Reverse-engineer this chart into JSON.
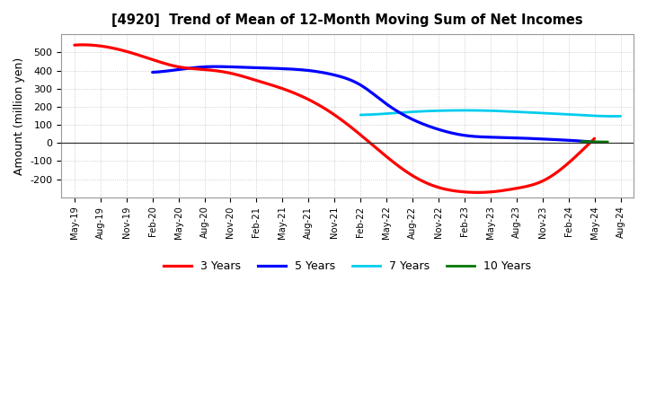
{
  "title": "[4920]  Trend of Mean of 12-Month Moving Sum of Net Incomes",
  "ylabel": "Amount (million yen)",
  "background_color": "#ffffff",
  "grid_color": "#999999",
  "ylim": [
    -300,
    600
  ],
  "yticks": [
    -200,
    -100,
    0,
    100,
    200,
    300,
    400,
    500
  ],
  "legend_entries": [
    "3 Years",
    "5 Years",
    "7 Years",
    "10 Years"
  ],
  "legend_colors": [
    "#ff0000",
    "#0000ff",
    "#00ccee",
    "#007700"
  ],
  "x_labels": [
    "May-19",
    "Aug-19",
    "Nov-19",
    "Feb-20",
    "May-20",
    "Aug-20",
    "Nov-20",
    "Feb-21",
    "May-21",
    "Aug-21",
    "Nov-21",
    "Feb-22",
    "May-22",
    "Aug-22",
    "Nov-22",
    "Feb-23",
    "May-23",
    "Aug-23",
    "Nov-23",
    "Feb-24",
    "May-24",
    "Aug-24"
  ],
  "series_3y": [
    540,
    535,
    505,
    460,
    420,
    405,
    385,
    345,
    300,
    240,
    155,
    45,
    -75,
    -180,
    -245,
    -270,
    -270,
    -250,
    -210,
    -110,
    25,
    null
  ],
  "series_5y": [
    null,
    null,
    null,
    390,
    405,
    420,
    420,
    415,
    410,
    400,
    375,
    320,
    215,
    130,
    75,
    42,
    32,
    28,
    22,
    15,
    5,
    null
  ],
  "series_7y": [
    null,
    null,
    null,
    null,
    null,
    null,
    null,
    null,
    null,
    null,
    null,
    155,
    162,
    172,
    178,
    180,
    178,
    172,
    165,
    158,
    150,
    148
  ],
  "series_10y": [
    null,
    null,
    null,
    null,
    null,
    null,
    null,
    null,
    null,
    null,
    null,
    null,
    null,
    null,
    null,
    null,
    null,
    null,
    null,
    null,
    8,
    null
  ]
}
